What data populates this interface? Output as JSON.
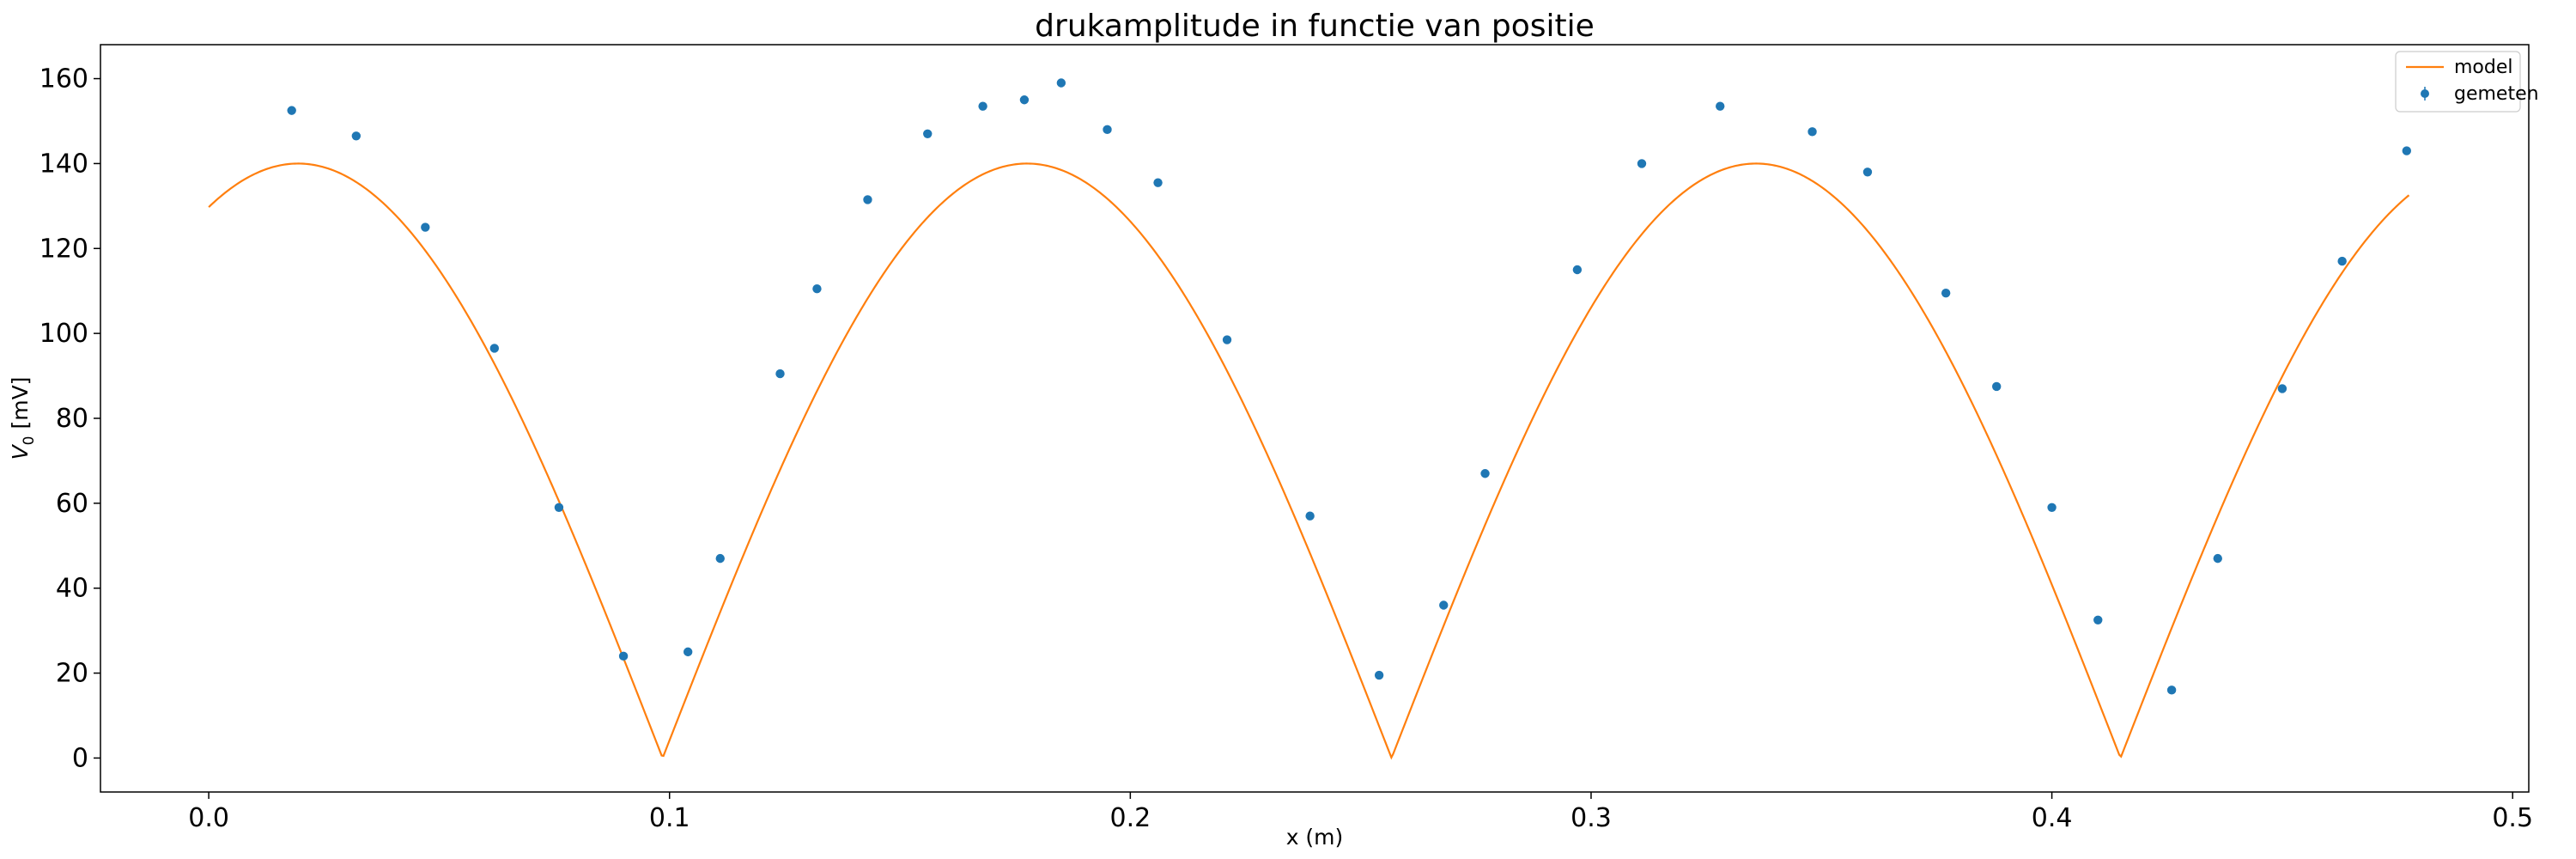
{
  "chart_data": {
    "type": "scatter",
    "title": "drukamplitude in functie van positie",
    "xlabel": "x (m)",
    "ylabel": "V",
    "ylabel_sub": "0",
    "ylabel_unit": " [mV]",
    "xlim": [
      -0.0235,
      0.5035
    ],
    "ylim": [
      -8,
      168
    ],
    "grid": false,
    "legend_position": "top-right",
    "x_ticks": [
      0.0,
      0.1,
      0.2,
      0.3,
      0.4,
      0.5
    ],
    "x_tick_labels": [
      "0.0",
      "0.1",
      "0.2",
      "0.3",
      "0.4",
      "0.5"
    ],
    "y_ticks": [
      0,
      20,
      40,
      60,
      80,
      100,
      120,
      140,
      160
    ],
    "y_tick_labels": [
      "0",
      "20",
      "40",
      "60",
      "80",
      "100",
      "120",
      "140",
      "160"
    ],
    "series": [
      {
        "name": "model",
        "kind": "line",
        "color": "#ff7f0e",
        "amplitude": 140,
        "nodes": [
          0.0985,
          0.2567,
          0.4149
        ],
        "x_range": [
          0.0,
          0.4775
        ]
      },
      {
        "name": "gemeten",
        "kind": "scatter",
        "color": "#1f77b4",
        "x": [
          0.018,
          0.032,
          0.047,
          0.062,
          0.076,
          0.09,
          0.104,
          0.111,
          0.124,
          0.132,
          0.143,
          0.156,
          0.168,
          0.177,
          0.185,
          0.195,
          0.206,
          0.221,
          0.239,
          0.254,
          0.268,
          0.277,
          0.297,
          0.311,
          0.328,
          0.348,
          0.36,
          0.377,
          0.388,
          0.4,
          0.41,
          0.426,
          0.436,
          0.45,
          0.463,
          0.477
        ],
        "y": [
          152.5,
          146.5,
          125,
          96.5,
          59,
          24,
          25,
          47,
          90.5,
          110.5,
          131.5,
          147,
          153.5,
          155,
          159,
          148,
          135.5,
          98.5,
          57,
          19.5,
          36,
          67,
          115,
          140,
          153.5,
          147.5,
          138,
          109.5,
          87.5,
          59,
          32.5,
          16,
          47,
          87,
          117,
          143
        ]
      }
    ]
  }
}
